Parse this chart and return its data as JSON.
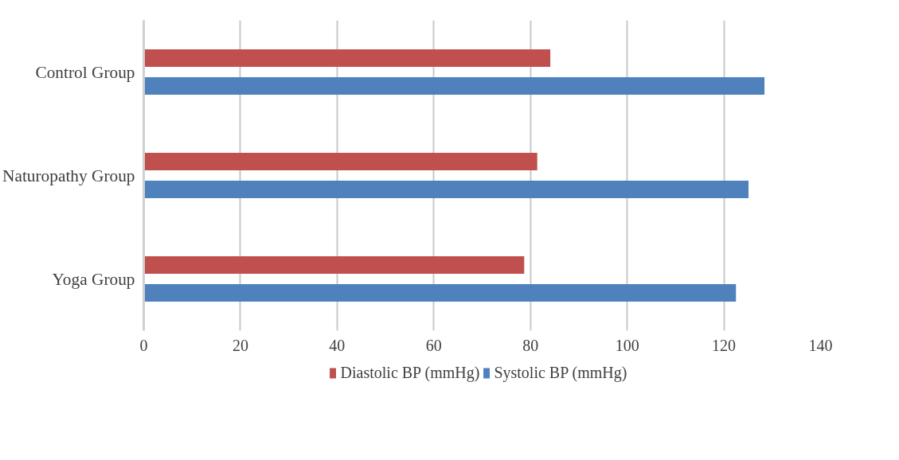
{
  "chart_data": {
    "type": "bar",
    "orientation": "horizontal",
    "categories": [
      "Control Group",
      "Naturopathy Group",
      "Yoga Group"
    ],
    "series": [
      {
        "name": "Diastolic BP (mmHg)",
        "color": "#c0504d",
        "values": [
          84.1,
          81.4,
          78.7
        ]
      },
      {
        "name": "Systolic BP (mmHg)",
        "color": "#4f81bd",
        "values": [
          128.4,
          125.1,
          122.5
        ]
      }
    ],
    "xlim": [
      0,
      140
    ],
    "xticks": [
      0,
      20,
      40,
      60,
      80,
      100,
      120,
      140
    ],
    "grid": "x",
    "legend": "bottom"
  }
}
